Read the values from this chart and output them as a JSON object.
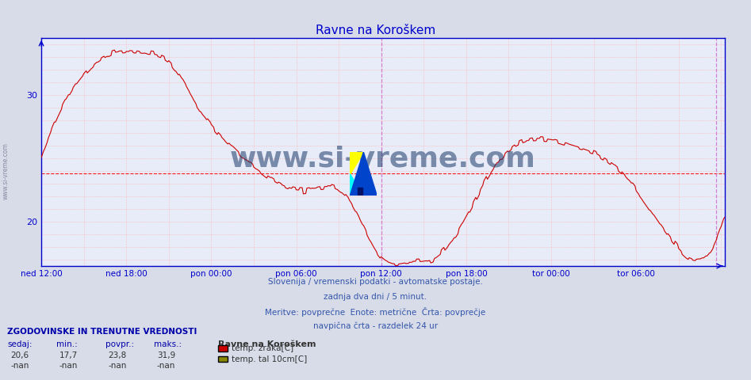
{
  "title": "Ravne na Koroškem",
  "title_color": "#0000cc",
  "bg_color": "#d8dce8",
  "plot_bg_color": "#e8ecf8",
  "line_color": "#cc0000",
  "grid_color": "#ffaaaa",
  "axis_color": "#0000cc",
  "avg_line_color": "#ff0000",
  "avg_value": 23.8,
  "vline_color": "#cc66cc",
  "ymin": 16.5,
  "ymax": 34.5,
  "yticks": [
    20,
    30
  ],
  "ylabel_color": "#0000aa",
  "xtick_labels": [
    "ned 12:00",
    "ned 18:00",
    "pon 00:00",
    "pon 06:00",
    "pon 12:00",
    "pon 18:00",
    "tor 00:00",
    "tor 06:00"
  ],
  "watermark": "www.si-vreme.com",
  "subtitle_lines": [
    "Slovenija / vremenski podatki - avtomatske postaje.",
    "zadnja dva dni / 5 minut.",
    "Meritve: povprečne  Enote: metrične  Črta: povprečje",
    "navpična črta - razdelek 24 ur"
  ],
  "legend_title": "Ravne na Koroškem",
  "legend_entries": [
    {
      "label": "temp. zraka[C]",
      "color": "#cc0000"
    },
    {
      "label": "temp. tal 10cm[C]",
      "color": "#888800"
    }
  ],
  "stats_header": "ZGODOVINSKE IN TRENUTNE VREDNOSTI",
  "stats_cols": [
    "sedaj:",
    "min.:",
    "povpr.:",
    "maks.:"
  ],
  "stats_row1": [
    "20,6",
    "17,7",
    "23,8",
    "31,9"
  ],
  "stats_row2": [
    "-nan",
    "-nan",
    "-nan",
    "-nan"
  ],
  "watermark_color": "#1a3a6a",
  "watermark_alpha": 0.55
}
